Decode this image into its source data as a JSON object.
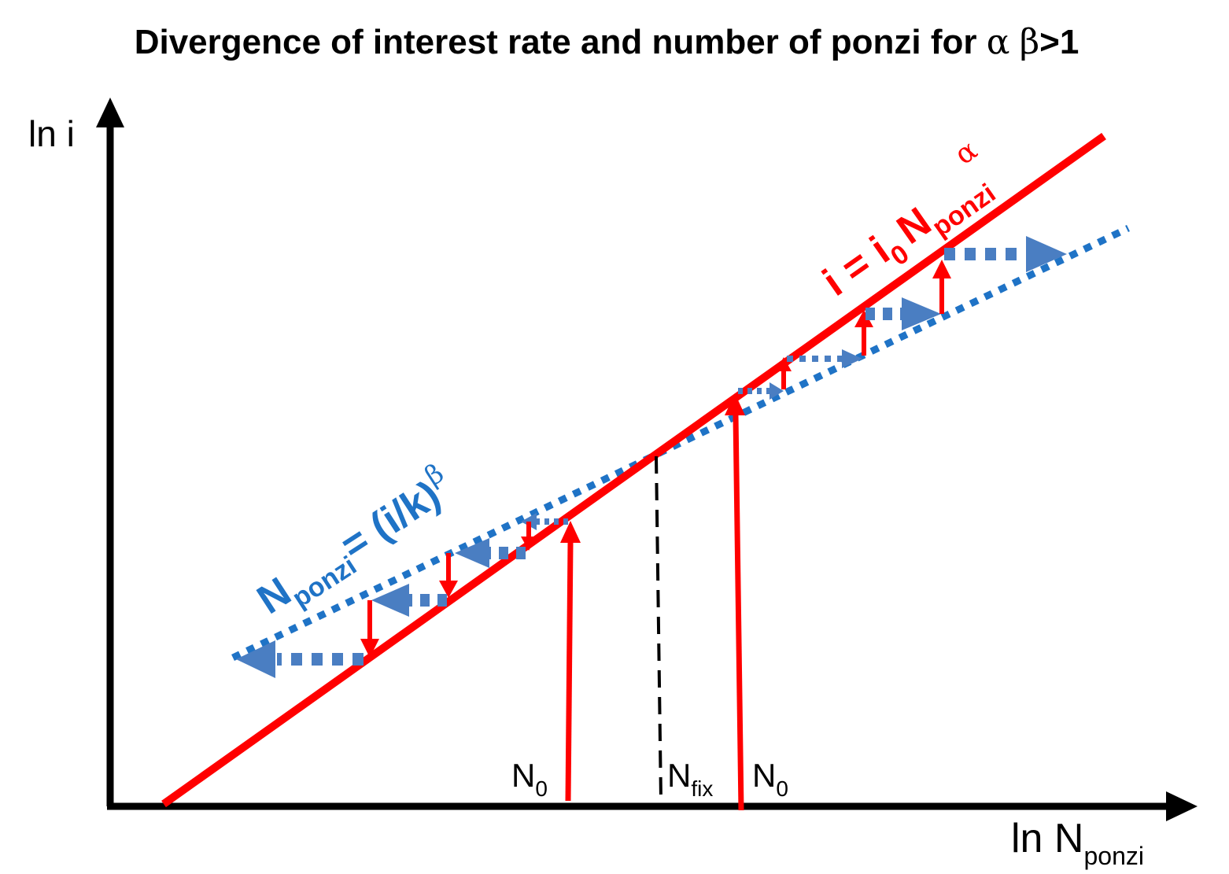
{
  "title": {
    "text": "Divergence of interest rate and number of ponzi for",
    "alpha": "α",
    "beta": "β",
    "suffix": ">1"
  },
  "axes": {
    "y_label": "ln i",
    "x_label_main": "ln N",
    "x_label_sub": "ponzi"
  },
  "red_curve_label": {
    "lhs": "i = i",
    "i_sub": "0",
    "n": "N",
    "n_sub": "ponzi",
    "exp": "α"
  },
  "blue_curve_label": {
    "n": "N",
    "n_sub": "ponzi",
    "rhs": "= (i/k)",
    "exp": "β"
  },
  "markers": {
    "n0_left": "N",
    "n0_left_sub": "0",
    "nfix": "N",
    "nfix_sub": "fix",
    "n0_right": "N",
    "n0_right_sub": "0"
  },
  "colors": {
    "red": "#ff0000",
    "blue_line": "#1f73c6",
    "blue_arrow": "#4a7ec2",
    "axis": "#000000"
  }
}
